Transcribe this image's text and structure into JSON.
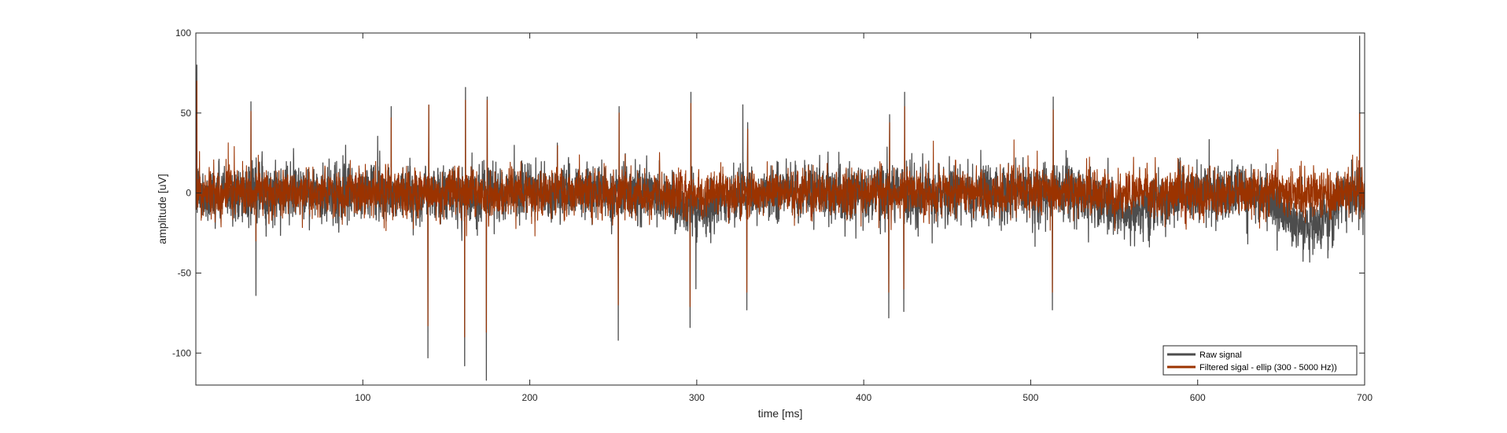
{
  "chart_data": {
    "type": "line",
    "title": "",
    "xlabel": "time [ms]",
    "ylabel": "amplitude [uV]",
    "xlim": [
      0,
      700
    ],
    "ylim": [
      -120,
      100
    ],
    "xticks": [
      100,
      200,
      300,
      400,
      500,
      600,
      700
    ],
    "yticks": [
      100,
      50,
      0,
      -50,
      -100
    ],
    "grid": false,
    "legend_position": "bottom-right",
    "sample_step_ms": 0.1,
    "series": [
      {
        "name": "Raw signal",
        "color": "#4d4d4d",
        "noise_rms": 12,
        "spikes": [
          {
            "t": 0.6,
            "v": 80
          },
          {
            "t": 33,
            "v": 57
          },
          {
            "t": 36,
            "v": -64
          },
          {
            "t": 117,
            "v": 54
          },
          {
            "t": 139,
            "v": -103
          },
          {
            "t": 139.5,
            "v": 55
          },
          {
            "t": 161,
            "v": -108
          },
          {
            "t": 161.5,
            "v": 66
          },
          {
            "t": 174,
            "v": -117
          },
          {
            "t": 174.5,
            "v": 60
          },
          {
            "t": 253,
            "v": -92
          },
          {
            "t": 253.5,
            "v": 54
          },
          {
            "t": 296,
            "v": -84
          },
          {
            "t": 296.5,
            "v": 63
          },
          {
            "t": 330,
            "v": -73
          },
          {
            "t": 330.5,
            "v": 44
          },
          {
            "t": 415,
            "v": -78
          },
          {
            "t": 415.5,
            "v": 49
          },
          {
            "t": 424,
            "v": -74
          },
          {
            "t": 424.5,
            "v": 63
          },
          {
            "t": 513,
            "v": -73
          },
          {
            "t": 513.5,
            "v": 60
          },
          {
            "t": 697,
            "v": 98
          },
          {
            "t": 699,
            "v": -26
          }
        ],
        "low_freq_bumps": [
          {
            "t": 665,
            "v": -22
          },
          {
            "t": 560,
            "v": -12
          },
          {
            "t": 300,
            "v": -10
          }
        ]
      },
      {
        "name": "Filtered sigal - ellip (300 - 5000 Hz))",
        "color": "#9b3300",
        "noise_rms": 10,
        "spikes": [
          {
            "t": 0.6,
            "v": 70
          },
          {
            "t": 33,
            "v": 51
          },
          {
            "t": 36,
            "v": -30
          },
          {
            "t": 117,
            "v": 47
          },
          {
            "t": 139,
            "v": -83
          },
          {
            "t": 139.5,
            "v": 55
          },
          {
            "t": 161,
            "v": -90
          },
          {
            "t": 161.5,
            "v": 58
          },
          {
            "t": 174,
            "v": -87
          },
          {
            "t": 174.5,
            "v": 58
          },
          {
            "t": 253,
            "v": -70
          },
          {
            "t": 253.5,
            "v": 50
          },
          {
            "t": 296,
            "v": -71
          },
          {
            "t": 296.5,
            "v": 56
          },
          {
            "t": 330,
            "v": -62
          },
          {
            "t": 330.5,
            "v": 40
          },
          {
            "t": 415,
            "v": -62
          },
          {
            "t": 415.5,
            "v": 44
          },
          {
            "t": 424,
            "v": -60
          },
          {
            "t": 424.5,
            "v": 54
          },
          {
            "t": 513,
            "v": -62
          },
          {
            "t": 513.5,
            "v": 52
          },
          {
            "t": 697,
            "v": 50
          },
          {
            "t": 699,
            "v": -12
          }
        ],
        "low_freq_bumps": []
      }
    ]
  },
  "axis_color": "#262626",
  "legend": {
    "entries": [
      "Raw signal",
      "Filtered sigal - ellip (300 - 5000 Hz))"
    ]
  }
}
